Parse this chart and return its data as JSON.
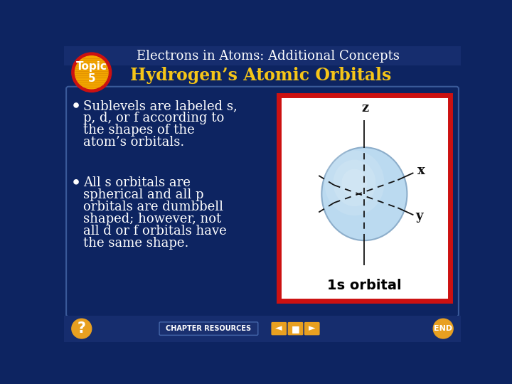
{
  "bg_color": "#0d2461",
  "title_text": "Electrons in Atoms: Additional Concepts",
  "title_color": "white",
  "title_fontsize": 13,
  "subtitle_text": "Hydrogen’s Atomic Orbitals",
  "subtitle_color": "#f5c518",
  "subtitle_fontsize": 17,
  "topic_label": "Topic\n5",
  "topic_bg": "#f5a800",
  "topic_ring": "#cc1111",
  "body_text_color": "white",
  "body_fontsize": 13,
  "bullet1_lines": [
    "Sublevels are labeled s,",
    "p, d, or f according to",
    "the shapes of the",
    "atom’s orbitals."
  ],
  "bullet2_lines": [
    "All s orbitals are",
    "spherical and all p",
    "orbitals are dumbbell",
    "shaped; however, not",
    "all d or f orbitals have",
    "the same shape."
  ],
  "orbital_label": "1s orbital",
  "orbital_label_fontsize": 14,
  "image_bg": "white",
  "image_border": "#cc1111",
  "sphere_color": "#b8d8f0",
  "sphere_edge": "#88aac8",
  "axis_color": "#111111",
  "axis_label_color": "#111111",
  "footer_button_color": "#e8a020",
  "title_bar_color": "#162d6e"
}
